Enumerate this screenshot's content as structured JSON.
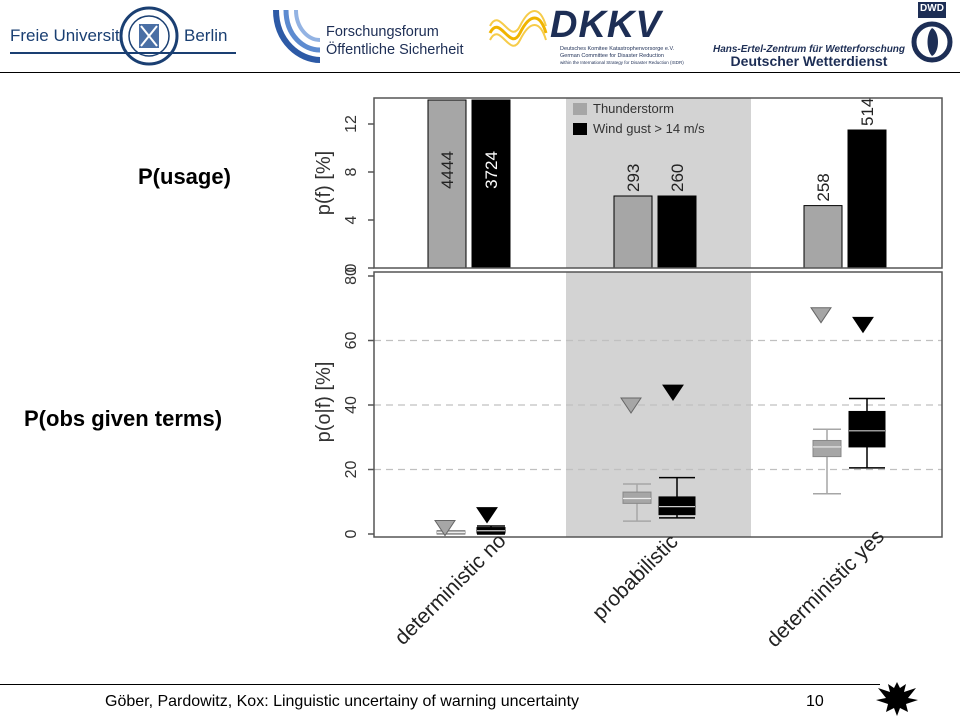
{
  "header": {
    "fu_logo": {
      "left": "Freie Universität",
      "right": "Berlin"
    },
    "forschungsforum": {
      "line1": "Forschungsforum",
      "line2": "Öffentliche Sicherheit"
    },
    "dkkv": {
      "name": "DKKV",
      "line1": "Deutsches Komitee Katastrophenvorsorge e.V.",
      "line2": "German Committee for Disaster Reduction",
      "line3": "within the International Strategy for Disaster Reduction (ISDR)"
    },
    "dwd": {
      "line1": "Hans-Ertel-Zentrum für Wetterforschung",
      "line2": "Deutscher Wetterdienst",
      "badge": "DWD"
    }
  },
  "labels": {
    "usage": "P(usage)",
    "obs": "P(obs given terms)"
  },
  "footer": {
    "citation": "Göber, Pardowitz, Kox: Linguistic uncertainy of warning uncertainty",
    "page": "10"
  },
  "colors": {
    "thunderstorm": "#a6a6a6",
    "wind": "#000000",
    "shade": "#d3d3d3"
  },
  "chart_data": [
    {
      "type": "bar",
      "categories": [
        "deterministic no",
        "probabilistic",
        "deterministic yes"
      ],
      "ylabel": "p(f) [%]",
      "ylim": [
        0,
        14
      ],
      "yticks": [
        0,
        4,
        8,
        12
      ],
      "legend": "top",
      "series": [
        {
          "name": "Thunderstorm",
          "values": [
            14,
            6,
            5.2
          ],
          "labels": [
            "4444",
            "293",
            "258"
          ]
        },
        {
          "name": "Wind gust > 14 m/s",
          "values": [
            14,
            6,
            11.5
          ],
          "labels": [
            "3724",
            "260",
            "514"
          ]
        }
      ],
      "shaded_category": "probabilistic"
    },
    {
      "type": "box",
      "categories": [
        "deterministic no",
        "probabilistic",
        "deterministic yes"
      ],
      "ylabel": "p(o|f) [%]",
      "ylim": [
        0,
        80
      ],
      "yticks": [
        0,
        20,
        40,
        60,
        80
      ],
      "grid": "dashed",
      "series": [
        {
          "name": "Thunderstorm",
          "boxes": [
            {
              "whislo": 0,
              "q1": 0,
              "med": 0.5,
              "q3": 1,
              "whishi": 1,
              "marker": 2
            },
            {
              "whislo": 4,
              "q1": 9.5,
              "med": 11,
              "q3": 13,
              "whishi": 15.5,
              "marker": 40
            },
            {
              "whislo": 12.5,
              "q1": 24,
              "med": 27,
              "q3": 29,
              "whishi": 32.5,
              "marker": 68
            }
          ]
        },
        {
          "name": "Wind gust > 14 m/s",
          "boxes": [
            {
              "whislo": 0,
              "q1": 0.3,
              "med": 1,
              "q3": 2,
              "whishi": 2.5,
              "marker": 6
            },
            {
              "whislo": 5,
              "q1": 6,
              "med": 8.5,
              "q3": 11.5,
              "whishi": 17.5,
              "marker": 44
            },
            {
              "whislo": 20.5,
              "q1": 27,
              "med": 32,
              "q3": 38,
              "whishi": 42,
              "marker": 65
            }
          ]
        }
      ],
      "shaded_category": "probabilistic"
    }
  ]
}
